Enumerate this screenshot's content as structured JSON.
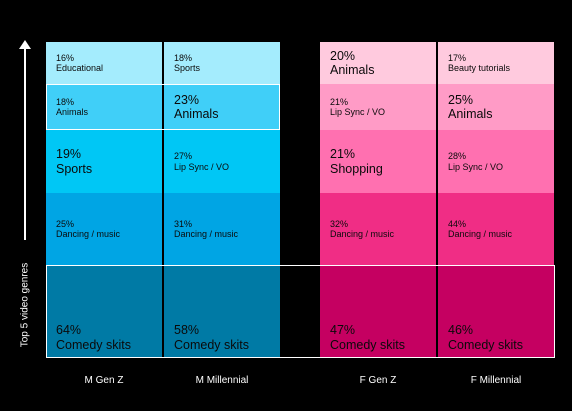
{
  "chart_data": {
    "type": "table",
    "ylabel": "Top 5 video genres",
    "columns": [
      {
        "name": "M Gen Z",
        "group": "male",
        "cells": [
          {
            "percent": 16,
            "pct_text": "16%",
            "genre": "Educational"
          },
          {
            "percent": 18,
            "pct_text": "18%",
            "genre": "Animals"
          },
          {
            "percent": 19,
            "pct_text": "19%",
            "genre": "Sports"
          },
          {
            "percent": 25,
            "pct_text": "25%",
            "genre": "Dancing / music"
          },
          {
            "percent": 64,
            "pct_text": "64%",
            "genre": "Comedy skits"
          }
        ]
      },
      {
        "name": "M Millennial",
        "group": "male",
        "cells": [
          {
            "percent": 18,
            "pct_text": "18%",
            "genre": "Sports"
          },
          {
            "percent": 23,
            "pct_text": "23%",
            "genre": "Animals"
          },
          {
            "percent": 27,
            "pct_text": "27%",
            "genre": "Lip Sync / VO"
          },
          {
            "percent": 31,
            "pct_text": "31%",
            "genre": "Dancing / music"
          },
          {
            "percent": 58,
            "pct_text": "58%",
            "genre": "Comedy skits"
          }
        ]
      },
      {
        "name": "F Gen Z",
        "group": "female",
        "cells": [
          {
            "percent": 20,
            "pct_text": "20%",
            "genre": "Animals"
          },
          {
            "percent": 21,
            "pct_text": "21%",
            "genre": "Lip Sync / VO"
          },
          {
            "percent": 21,
            "pct_text": "21%",
            "genre": "Shopping"
          },
          {
            "percent": 32,
            "pct_text": "32%",
            "genre": "Dancing / music"
          },
          {
            "percent": 47,
            "pct_text": "47%",
            "genre": "Comedy skits"
          }
        ]
      },
      {
        "name": "F Millennial",
        "group": "female",
        "cells": [
          {
            "percent": 17,
            "pct_text": "17%",
            "genre": "Beauty tutorials"
          },
          {
            "percent": 25,
            "pct_text": "25%",
            "genre": "Animals"
          },
          {
            "percent": 28,
            "pct_text": "28%",
            "genre": "Lip Sync / VO"
          },
          {
            "percent": 44,
            "pct_text": "44%",
            "genre": "Dancing / music"
          },
          {
            "percent": 46,
            "pct_text": "46%",
            "genre": "Comedy skits"
          }
        ]
      }
    ],
    "highlighted_rows": [
      "Animals",
      "Comedy skits"
    ],
    "colors": {
      "background": "#000000",
      "text": "#0a0a0a",
      "male": [
        "#a4ecfd",
        "#40cff8",
        "#00c7f5",
        "#00a5e4",
        "#007aa5"
      ],
      "female": [
        "#ffcade",
        "#ff9bc6",
        "#ff70b0",
        "#f02d85",
        "#c50061"
      ]
    }
  }
}
